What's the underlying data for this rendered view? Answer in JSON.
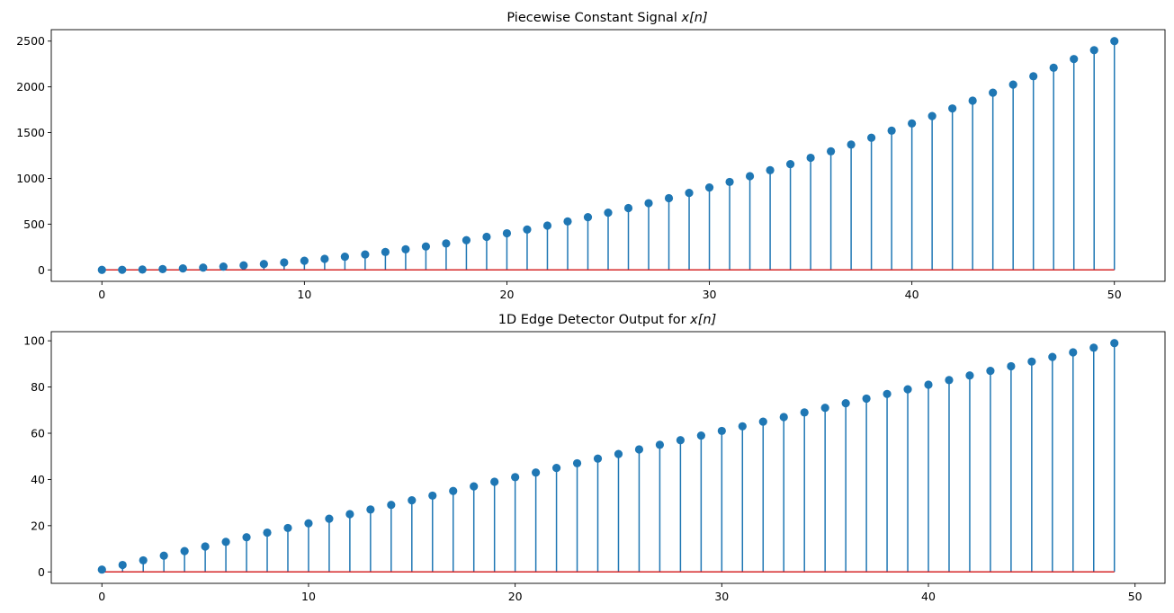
{
  "chart_data": [
    {
      "type": "stem",
      "title": "Piecewise Constant Signal",
      "title_math": "x[n]",
      "xlabel": "",
      "ylabel": "",
      "xlim": [
        -2.5,
        52.5
      ],
      "ylim": [
        -125,
        2625
      ],
      "xticks": [
        0,
        10,
        20,
        30,
        40,
        50
      ],
      "yticks": [
        0,
        500,
        1000,
        1500,
        2000,
        2500
      ],
      "x": [
        0,
        1,
        2,
        3,
        4,
        5,
        6,
        7,
        8,
        9,
        10,
        11,
        12,
        13,
        14,
        15,
        16,
        17,
        18,
        19,
        20,
        21,
        22,
        23,
        24,
        25,
        26,
        27,
        28,
        29,
        30,
        31,
        32,
        33,
        34,
        35,
        36,
        37,
        38,
        39,
        40,
        41,
        42,
        43,
        44,
        45,
        46,
        47,
        48,
        49,
        50
      ],
      "values": [
        0,
        1,
        4,
        9,
        16,
        25,
        36,
        49,
        64,
        81,
        100,
        121,
        144,
        169,
        196,
        225,
        256,
        289,
        324,
        361,
        400,
        441,
        484,
        529,
        576,
        625,
        676,
        729,
        784,
        841,
        900,
        961,
        1024,
        1089,
        1156,
        1225,
        1296,
        1369,
        1444,
        1521,
        1600,
        1681,
        1764,
        1849,
        1936,
        2025,
        2116,
        2209,
        2304,
        2401,
        2500
      ],
      "grid": false,
      "stem_color": "#1f77b4",
      "baseline_color": "#d62728"
    },
    {
      "type": "stem",
      "title": "1D Edge Detector Output for",
      "title_math": "x[n]",
      "xlabel": "",
      "ylabel": "",
      "xlim": [
        -2.45,
        51.45
      ],
      "ylim": [
        -4.95,
        103.95
      ],
      "xticks": [
        0,
        10,
        20,
        30,
        40,
        50
      ],
      "yticks": [
        0,
        20,
        40,
        60,
        80,
        100
      ],
      "x": [
        0,
        1,
        2,
        3,
        4,
        5,
        6,
        7,
        8,
        9,
        10,
        11,
        12,
        13,
        14,
        15,
        16,
        17,
        18,
        19,
        20,
        21,
        22,
        23,
        24,
        25,
        26,
        27,
        28,
        29,
        30,
        31,
        32,
        33,
        34,
        35,
        36,
        37,
        38,
        39,
        40,
        41,
        42,
        43,
        44,
        45,
        46,
        47,
        48,
        49
      ],
      "values": [
        1,
        3,
        5,
        7,
        9,
        11,
        13,
        15,
        17,
        19,
        21,
        23,
        25,
        27,
        29,
        31,
        33,
        35,
        37,
        39,
        41,
        43,
        45,
        47,
        49,
        51,
        53,
        55,
        57,
        59,
        61,
        63,
        65,
        67,
        69,
        71,
        73,
        75,
        77,
        79,
        81,
        83,
        85,
        87,
        89,
        91,
        93,
        95,
        97,
        99
      ],
      "grid": false,
      "stem_color": "#1f77b4",
      "baseline_color": "#d62728"
    }
  ]
}
